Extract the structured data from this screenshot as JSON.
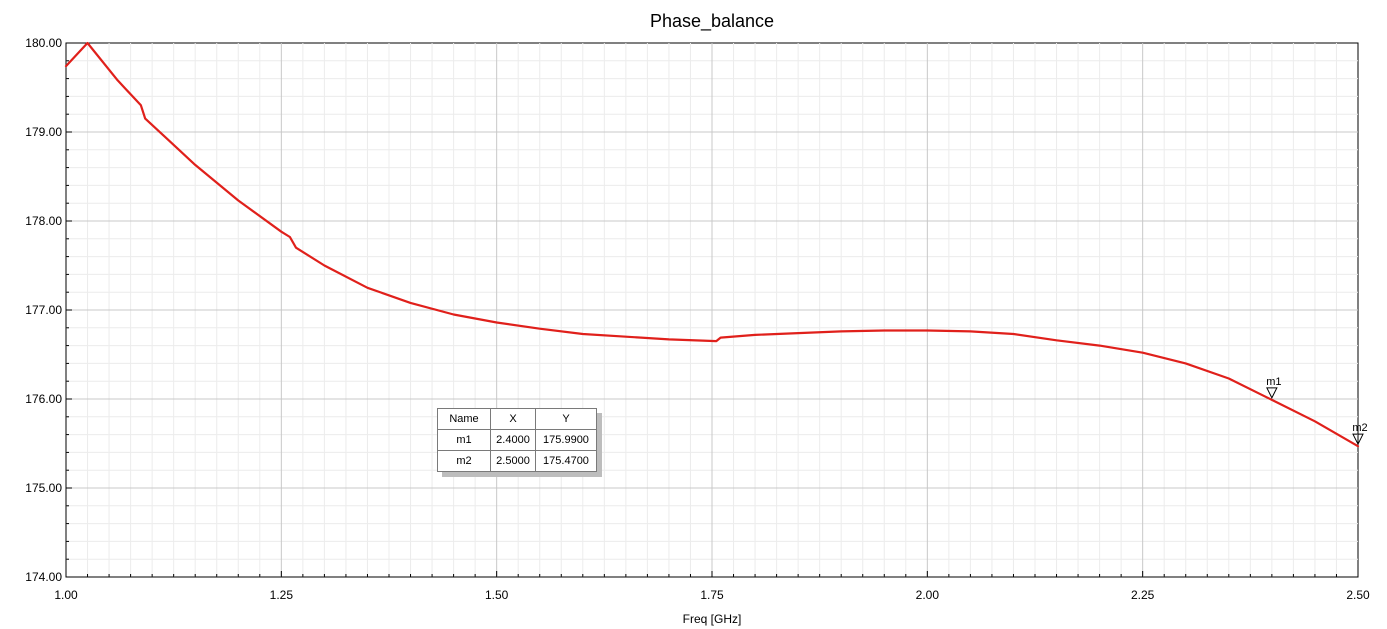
{
  "chart_data": {
    "type": "line",
    "title": "Phase_balance",
    "xlabel": "Freq [GHz]",
    "ylabel": "",
    "xlim": [
      1.0,
      2.5
    ],
    "ylim": [
      174.0,
      180.0
    ],
    "x_ticks": [
      "1.00",
      "1.25",
      "1.50",
      "1.75",
      "2.00",
      "2.25",
      "2.50"
    ],
    "y_ticks": [
      "174.00",
      "175.00",
      "176.00",
      "177.00",
      "178.00",
      "179.00",
      "180.00"
    ],
    "grid": true,
    "series": [
      {
        "color": "#e0201b",
        "x": [
          1.0,
          1.025,
          1.06,
          1.087,
          1.092,
          1.12,
          1.15,
          1.2,
          1.25,
          1.26,
          1.267,
          1.3,
          1.35,
          1.4,
          1.45,
          1.5,
          1.55,
          1.6,
          1.65,
          1.7,
          1.755,
          1.76,
          1.8,
          1.85,
          1.9,
          1.95,
          2.0,
          2.05,
          2.1,
          2.15,
          2.2,
          2.25,
          2.3,
          2.35,
          2.4,
          2.45,
          2.5
        ],
        "y": [
          179.74,
          180.0,
          179.58,
          179.3,
          179.15,
          178.9,
          178.63,
          178.23,
          177.88,
          177.82,
          177.7,
          177.5,
          177.25,
          177.08,
          176.95,
          176.86,
          176.79,
          176.73,
          176.7,
          176.67,
          176.65,
          176.69,
          176.72,
          176.74,
          176.76,
          176.77,
          176.77,
          176.76,
          176.73,
          176.66,
          176.6,
          176.52,
          176.4,
          176.23,
          175.99,
          175.75,
          175.47
        ]
      }
    ],
    "markers": [
      {
        "name": "m1",
        "x": 2.4,
        "y": 175.99
      },
      {
        "name": "m2",
        "x": 2.5,
        "y": 175.47
      }
    ]
  },
  "marker_table": {
    "headers": [
      "Name",
      "X",
      "Y"
    ],
    "rows": [
      [
        "m1",
        "2.4000",
        "175.9900"
      ],
      [
        "m2",
        "2.5000",
        "175.4700"
      ]
    ]
  }
}
